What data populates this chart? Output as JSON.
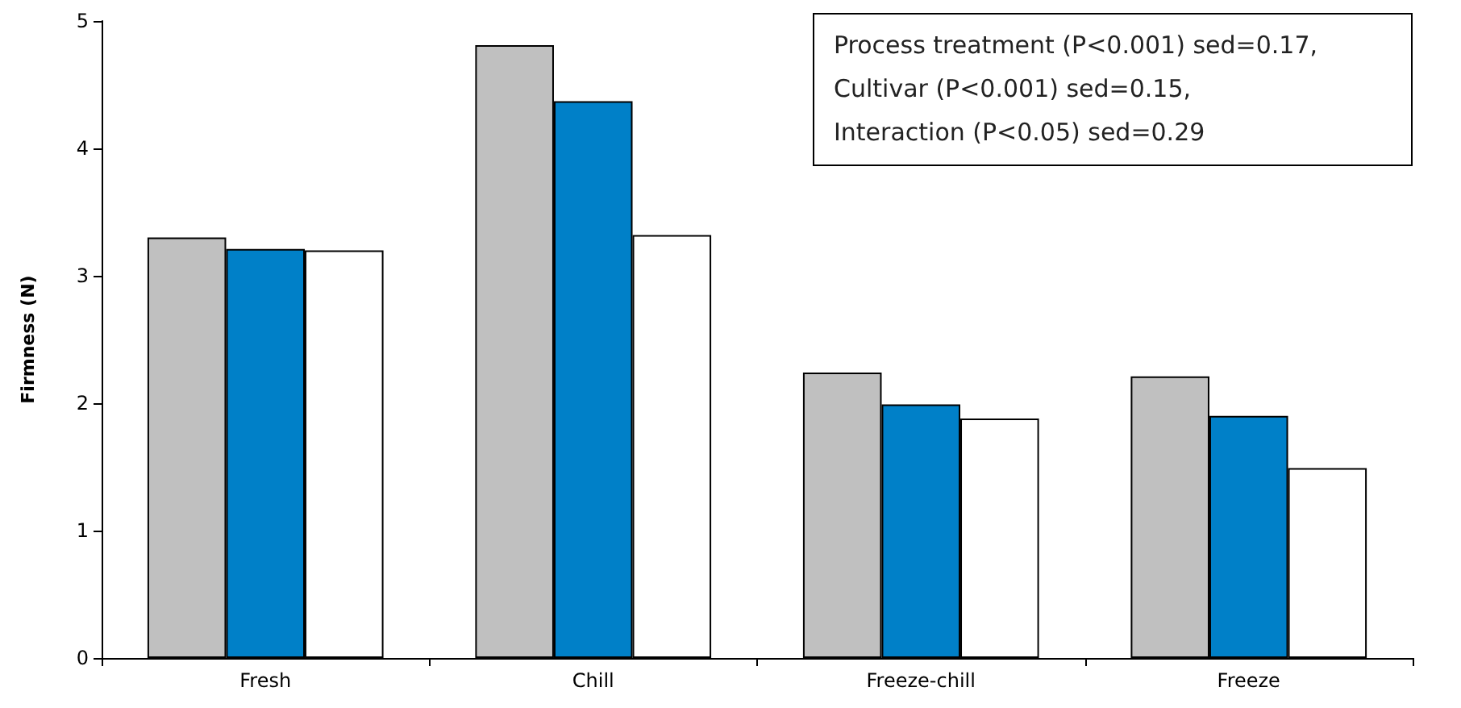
{
  "chart_data": {
    "type": "bar",
    "ylabel": "Firmness (N)",
    "categories": [
      "Fresh",
      "Chill",
      "Freeze-chill",
      "Freeze"
    ],
    "series": [
      {
        "color": "#c0c0c0",
        "values": [
          3.3,
          4.81,
          2.24,
          2.21
        ]
      },
      {
        "color": "#0080c8",
        "values": [
          3.21,
          4.37,
          1.99,
          1.9
        ]
      },
      {
        "color": "#ffffff",
        "values": [
          3.2,
          3.32,
          1.88,
          1.49
        ]
      }
    ],
    "ylim": [
      0,
      5
    ],
    "yticks": [
      0,
      1,
      2,
      3,
      4,
      5
    ],
    "grid": false,
    "annotations": [
      "Process treatment (P<0.001) sed=0.17,",
      "Cultivar (P<0.001) sed=0.15,",
      "Interaction (P<0.05) sed=0.29"
    ]
  }
}
